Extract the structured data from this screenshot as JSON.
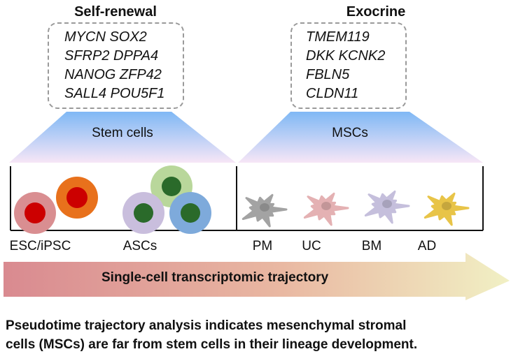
{
  "groups": [
    {
      "title": "Self-renewal",
      "genes": [
        "MYCN SOX2",
        "SFRP2 DPPA4",
        "NANOG ZFP42",
        "SALL4 POU5F1"
      ],
      "category": "Stem cells"
    },
    {
      "title": "Exocrine",
      "genes": [
        "TMEM119",
        "DKK KCNK2",
        "FBLN5",
        "CLDN11"
      ],
      "category": "MSCs"
    }
  ],
  "cell_labels": [
    "ESC/iPSC",
    "ASCs",
    "PM",
    "UC",
    "BM",
    "AD"
  ],
  "arrow_label": "Single-cell transcriptomic trajectory",
  "summary": [
    "Pseudotime trajectory analysis indicates mesenchymal stromal",
    "cells (MSCs) are far from stem cells in their lineage development."
  ],
  "colors": {
    "esc": "#d98e91",
    "ipsc": "#e8711c",
    "nucleus_red": "#cc0000",
    "asc_green": "#b9d79b",
    "asc_lavender": "#c9bedd",
    "asc_blue": "#7eaadb",
    "nucleus_green": "#2a6a2a",
    "pm": "#a3a3a3",
    "uc": "#e4b1b3",
    "bm": "#c5bfdc",
    "ad": "#e8c448",
    "arrow_start": "#d98a90",
    "arrow_end": "#f1f0c4",
    "trap_top": "#7fb8f5",
    "trap_bottom": "#f7e6f6"
  }
}
